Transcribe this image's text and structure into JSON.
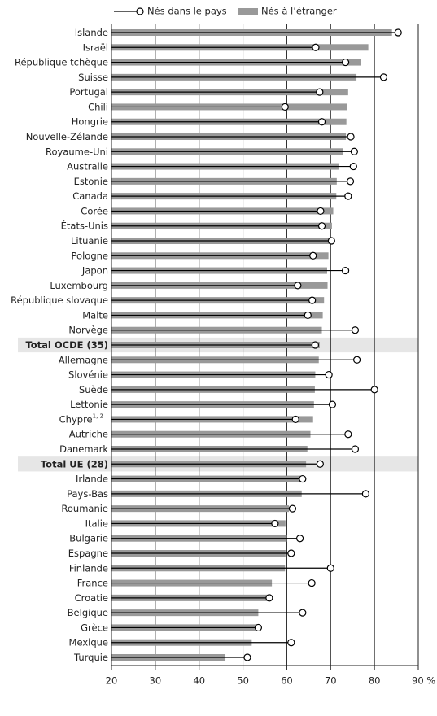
{
  "chart_data": {
    "type": "bar",
    "categories": [
      "Islande",
      "Israël",
      "République tchèque",
      "Suisse",
      "Portugal",
      "Chili",
      "Hongrie",
      "Nouvelle-Zélande",
      "Royaume-Uni",
      "Australie",
      "Estonie",
      "Canada",
      "Corée",
      "États-Unis",
      "Lituanie",
      "Pologne",
      "Japon",
      "Luxembourg",
      "République slovaque",
      "Malte",
      "Norvège",
      "Total OCDE (35)",
      "Allemagne",
      "Slovénie",
      "Suède",
      "Lettonie",
      "Chypre",
      "Autriche",
      "Danemark",
      "Total UE (28)",
      "Irlande",
      "Pays-Bas",
      "Roumanie",
      "Italie",
      "Bulgarie",
      "Espagne",
      "Finlande",
      "France",
      "Croatie",
      "Belgique",
      "Grèce",
      "Mexique",
      "Turquie"
    ],
    "category_superscripts": [
      null,
      null,
      null,
      null,
      null,
      null,
      null,
      null,
      null,
      null,
      null,
      null,
      null,
      null,
      null,
      null,
      null,
      null,
      null,
      null,
      null,
      null,
      null,
      null,
      null,
      null,
      "1, 2",
      null,
      null,
      null,
      null,
      null,
      null,
      null,
      null,
      null,
      null,
      null,
      null,
      null,
      null,
      null,
      null
    ],
    "highlight": [
      21,
      29
    ],
    "series": [
      {
        "name": "Nés dans le pays",
        "color": "#000000",
        "marker": "circle",
        "values": [
          85.4,
          66.6,
          73.4,
          82.1,
          67.5,
          59.6,
          68.0,
          74.6,
          75.4,
          75.2,
          74.5,
          74.0,
          67.7,
          68.0,
          70.2,
          66.0,
          73.4,
          62.5,
          65.8,
          64.8,
          75.6,
          66.5,
          76.0,
          69.6,
          80.0,
          70.4,
          62.0,
          74.0,
          75.6,
          67.6,
          63.6,
          78.0,
          61.3,
          57.3,
          63.0,
          61.0,
          70.0,
          65.7,
          56.0,
          63.6,
          53.5,
          61.0,
          51.0
        ]
      },
      {
        "name": "Nés à l’étranger",
        "color": "#999999",
        "marker": "bar",
        "values": [
          84.0,
          78.6,
          77.0,
          75.9,
          74.0,
          73.8,
          73.6,
          73.5,
          72.9,
          71.8,
          71.4,
          71.3,
          70.6,
          70.3,
          70.0,
          69.5,
          69.2,
          69.3,
          68.5,
          68.2,
          68.0,
          67.5,
          67.3,
          66.5,
          66.4,
          66.2,
          66.0,
          65.4,
          64.7,
          64.4,
          63.3,
          63.4,
          60.5,
          59.7,
          60.0,
          59.7,
          59.6,
          56.6,
          55.6,
          53.5,
          53.4,
          52.0,
          46.0
        ]
      }
    ],
    "xlim": [
      20,
      90
    ],
    "xticks": [
      20,
      30,
      40,
      50,
      60,
      70,
      80,
      {
        "value": 90,
        "label": "90 %"
      }
    ],
    "grid": true
  }
}
